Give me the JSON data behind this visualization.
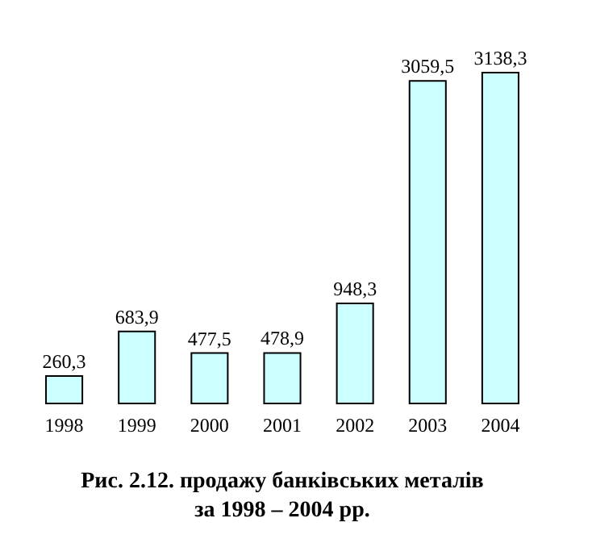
{
  "chart_data": {
    "type": "bar",
    "title": "Рис. 2.12. продажу банківських металів за 1998 – 2004 рр.",
    "categories": [
      "1998",
      "1999",
      "2000",
      "2001",
      "2002",
      "2003",
      "2004"
    ],
    "values": [
      260.3,
      683.9,
      477.5,
      478.9,
      948.3,
      3059.5,
      3138.3
    ],
    "value_labels": [
      "260,3",
      "683,9",
      "477,5",
      "478,9",
      "948,3",
      "3059,5",
      "3138,3"
    ],
    "color": "#ccffff",
    "tick_labels": "x"
  }
}
